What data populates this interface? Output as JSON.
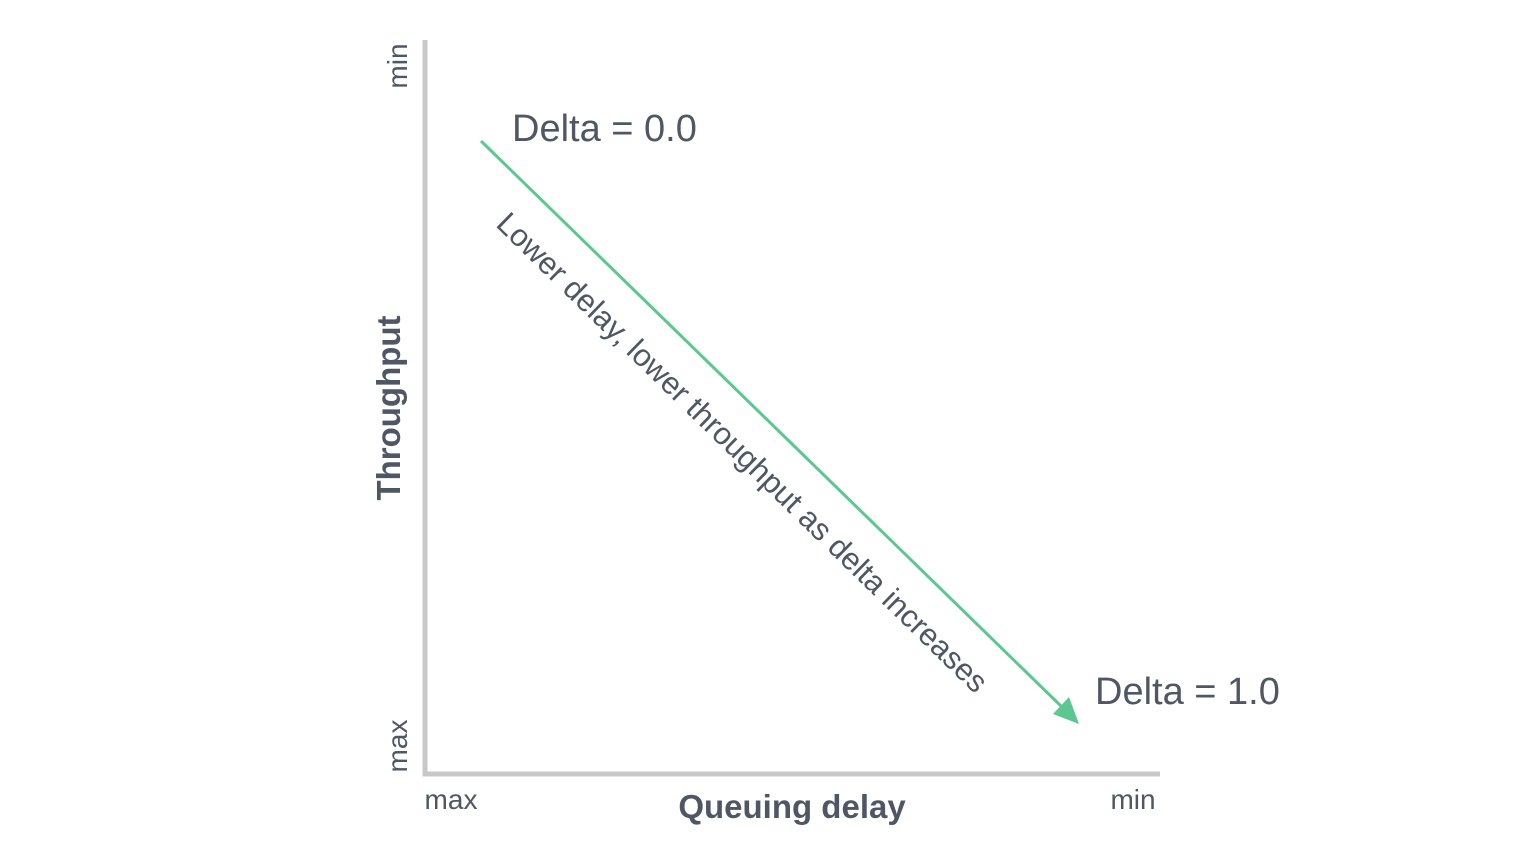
{
  "diagram": {
    "x_axis": {
      "title": "Queuing delay",
      "start_label": "max",
      "end_label": "min"
    },
    "y_axis": {
      "title": "Throughput",
      "bottom_label": "max",
      "top_label": "min"
    },
    "start_point_label": "Delta = 0.0",
    "end_point_label": "Delta = 1.0",
    "trend_label": "Lower delay, lower throughput as delta increases",
    "colors": {
      "arrow": "#5cc78e",
      "axis": "#c8c8c8",
      "text": "#4f5765"
    }
  }
}
